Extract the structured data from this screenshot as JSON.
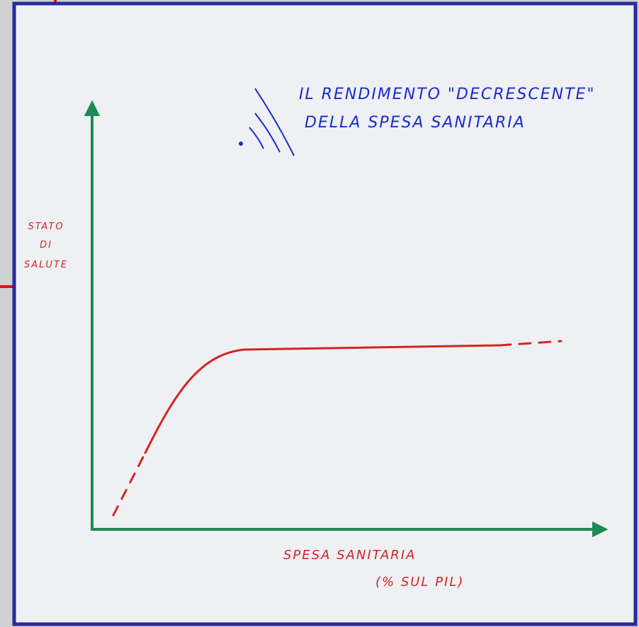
{
  "title": {
    "lines": [
      "IL RENDIMENTO \"DECRESCENTE\"",
      "DELLA SPESA SANITARIA"
    ]
  },
  "y_axis_label": {
    "lines": [
      "STATO",
      "DI",
      "SALUTE"
    ]
  },
  "x_axis_label": {
    "lines": [
      "SPESA SANITARIA",
      "(% SUL PIL)"
    ]
  }
}
